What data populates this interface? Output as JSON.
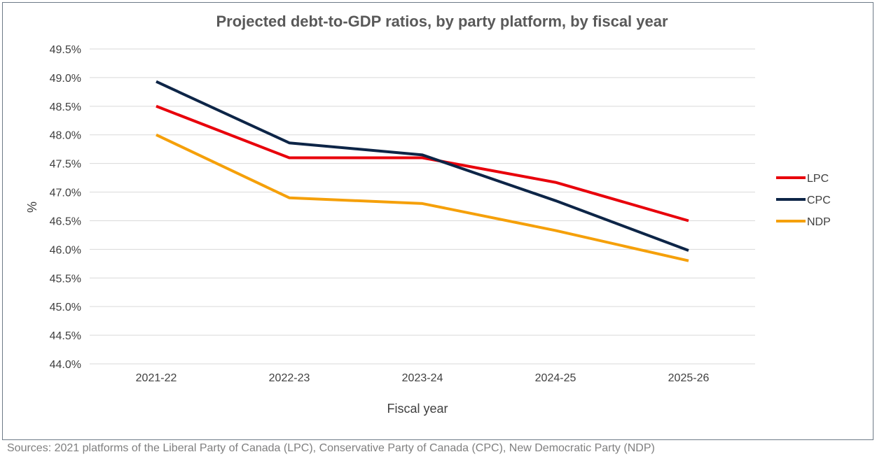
{
  "chart_data": {
    "type": "line",
    "title": "Projected debt-to-GDP ratios, by party platform, by fiscal year",
    "xlabel": "Fiscal year",
    "ylabel": "%",
    "categories": [
      "2021-22",
      "2022-23",
      "2023-24",
      "2024-25",
      "2025-26"
    ],
    "ylim": [
      44.0,
      49.5
    ],
    "ytick_step": 0.5,
    "ytick_format": "percent_1dp",
    "grid": "horizontal",
    "legend_position": "right",
    "series": [
      {
        "name": "LPC",
        "color": "#e8000b",
        "values": [
          48.5,
          47.6,
          47.6,
          47.17,
          46.5
        ]
      },
      {
        "name": "CPC",
        "color": "#0d2547",
        "values": [
          48.93,
          47.86,
          47.65,
          46.85,
          45.98
        ]
      },
      {
        "name": "NDP",
        "color": "#f5a00a",
        "values": [
          48.0,
          46.9,
          46.8,
          46.33,
          45.8
        ]
      }
    ]
  },
  "footer": {
    "source": "Sources: 2021 platforms of the Liberal Party of Canada (LPC), Conservative Party of Canada (CPC), New Democratic Party (NDP)"
  }
}
